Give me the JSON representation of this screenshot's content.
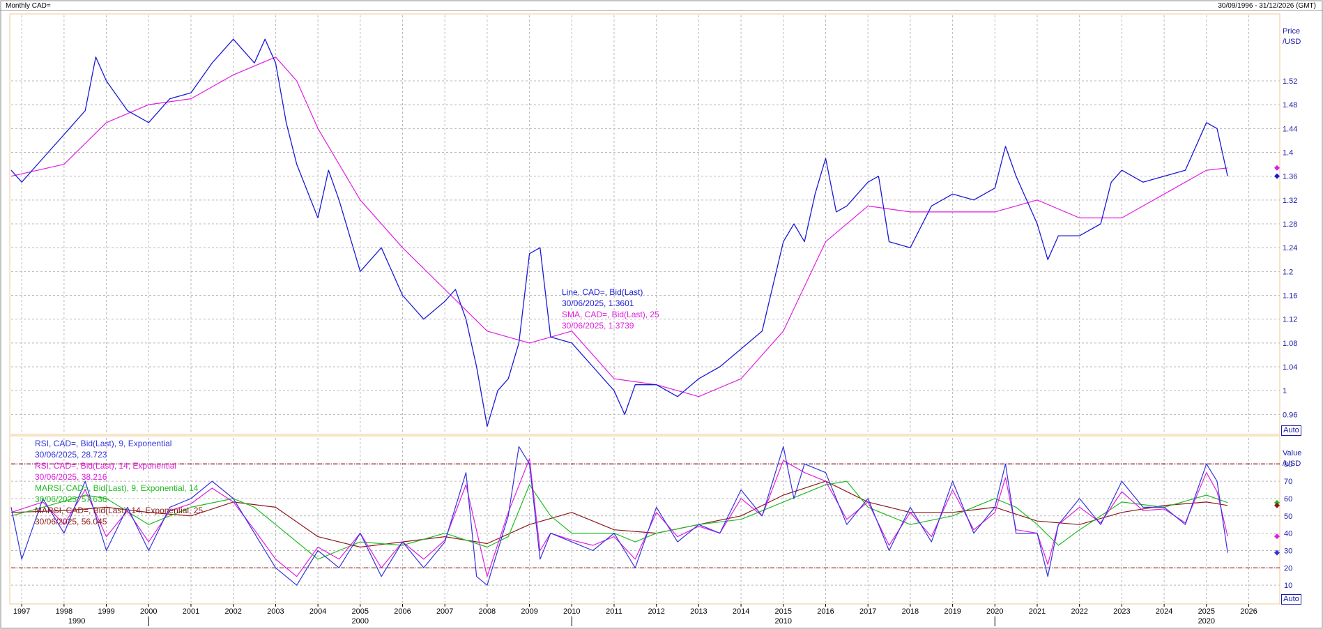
{
  "header": {
    "title": "Monthly CAD=",
    "range": "30/09/1996 - 31/12/2026 (GMT)"
  },
  "price_panel": {
    "unit_line1": "Price",
    "unit_line2": "/USD",
    "auto": "Auto",
    "legend": [
      {
        "label": "Line, CAD=, Bid(Last)",
        "value": "30/06/2025, 1.3601",
        "color": "#1a1ad6"
      },
      {
        "label": "SMA, CAD=, Bid(Last),  25",
        "value": "30/06/2025, 1.3739",
        "color": "#e01ee0"
      }
    ]
  },
  "rsi_panel": {
    "unit_line1": "Value",
    "unit_line2": "/USD",
    "auto": "Auto",
    "legend": [
      {
        "label": "RSI, CAD=, Bid(Last),  9, Exponential",
        "value": "30/06/2025, 28.723",
        "color": "#3333dd"
      },
      {
        "label": "RSI, CAD=, Bid(Last),  14, Exponential",
        "value": "30/06/2025, 38.216",
        "color": "#e01ee0"
      },
      {
        "label": "MARSI, CAD=, Bid(Last),  9, Exponential, 14",
        "value": "30/06/2025, 57.636",
        "color": "#22bb22"
      },
      {
        "label": "MARSI, CAD=, Bid(Last),  14, Exponential, 25",
        "value": "30/06/2025, 56.045",
        "color": "#8b1a1a"
      }
    ]
  },
  "x_axis": {
    "years": [
      "1997",
      "1998",
      "1999",
      "2000",
      "2001",
      "2002",
      "2003",
      "2004",
      "2005",
      "2006",
      "2007",
      "2008",
      "2009",
      "2010",
      "2011",
      "2012",
      "2013",
      "2014",
      "2015",
      "2016",
      "2017",
      "2018",
      "2019",
      "2020",
      "2021",
      "2022",
      "2023",
      "2024",
      "2025",
      "2026"
    ],
    "decades": [
      "1990",
      "2000",
      "2010",
      "2020"
    ]
  },
  "colors": {
    "price": "#1a1ad6",
    "sma": "#e01ee0",
    "rsi9": "#3333dd",
    "rsi14": "#e01ee0",
    "marsi9": "#22bb22",
    "marsi14": "#8b1a1a",
    "grid": "#b8b8b8",
    "bands": "#8b1a1a"
  },
  "chart_data": [
    {
      "type": "line",
      "title": "",
      "ylabel": "Price /USD",
      "ylim": [
        0.93,
        1.63
      ],
      "y_ticks": [
        0.96,
        1,
        1.04,
        1.08,
        1.12,
        1.16,
        1.2,
        1.24,
        1.28,
        1.32,
        1.36,
        1.4,
        1.44,
        1.48,
        1.52
      ],
      "grid": true,
      "series": [
        {
          "name": "Line, CAD=, Bid(Last)",
          "x": [
            1996.75,
            1997.0,
            1997.5,
            1998.0,
            1998.5,
            1998.75,
            1999.0,
            1999.5,
            2000.0,
            2000.5,
            2001.0,
            2001.5,
            2002.0,
            2002.5,
            2002.75,
            2003.0,
            2003.25,
            2003.5,
            2004.0,
            2004.25,
            2004.5,
            2005.0,
            2005.5,
            2006.0,
            2006.5,
            2007.0,
            2007.25,
            2007.5,
            2007.75,
            2008.0,
            2008.25,
            2008.5,
            2008.75,
            2009.0,
            2009.25,
            2009.5,
            2010.0,
            2010.5,
            2011.0,
            2011.25,
            2011.5,
            2012.0,
            2012.5,
            2013.0,
            2013.5,
            2014.0,
            2014.5,
            2015.0,
            2015.25,
            2015.5,
            2015.75,
            2016.0,
            2016.25,
            2016.5,
            2017.0,
            2017.25,
            2017.5,
            2018.0,
            2018.5,
            2019.0,
            2019.5,
            2020.0,
            2020.25,
            2020.5,
            2021.0,
            2021.25,
            2021.5,
            2022.0,
            2022.5,
            2022.75,
            2023.0,
            2023.5,
            2024.0,
            2024.5,
            2025.0,
            2025.25,
            2025.5
          ],
          "values": [
            1.37,
            1.35,
            1.39,
            1.43,
            1.47,
            1.56,
            1.52,
            1.47,
            1.45,
            1.49,
            1.5,
            1.55,
            1.59,
            1.55,
            1.59,
            1.55,
            1.45,
            1.38,
            1.29,
            1.37,
            1.32,
            1.2,
            1.24,
            1.16,
            1.12,
            1.15,
            1.17,
            1.12,
            1.04,
            0.94,
            1.0,
            1.02,
            1.08,
            1.23,
            1.24,
            1.09,
            1.08,
            1.04,
            1.0,
            0.96,
            1.01,
            1.01,
            0.99,
            1.02,
            1.04,
            1.07,
            1.1,
            1.25,
            1.28,
            1.25,
            1.33,
            1.39,
            1.3,
            1.31,
            1.35,
            1.36,
            1.25,
            1.24,
            1.31,
            1.33,
            1.32,
            1.34,
            1.41,
            1.36,
            1.28,
            1.22,
            1.26,
            1.26,
            1.28,
            1.35,
            1.37,
            1.35,
            1.36,
            1.37,
            1.45,
            1.44,
            1.3601
          ]
        },
        {
          "name": "SMA, CAD=, Bid(Last),  25",
          "x": [
            1996.75,
            1998.0,
            1999.0,
            2000.0,
            2001.0,
            2002.0,
            2003.0,
            2003.5,
            2004.0,
            2005.0,
            2006.0,
            2007.0,
            2008.0,
            2009.0,
            2010.0,
            2011.0,
            2012.0,
            2013.0,
            2014.0,
            2015.0,
            2016.0,
            2017.0,
            2018.0,
            2019.0,
            2020.0,
            2021.0,
            2022.0,
            2023.0,
            2024.0,
            2025.0,
            2025.5
          ],
          "values": [
            1.36,
            1.38,
            1.45,
            1.48,
            1.49,
            1.53,
            1.56,
            1.52,
            1.44,
            1.32,
            1.24,
            1.17,
            1.1,
            1.08,
            1.1,
            1.02,
            1.01,
            0.99,
            1.02,
            1.1,
            1.25,
            1.31,
            1.3,
            1.3,
            1.3,
            1.32,
            1.29,
            1.29,
            1.33,
            1.37,
            1.3739
          ]
        }
      ]
    },
    {
      "type": "line",
      "title": "",
      "ylabel": "Value /USD",
      "ylim": [
        0,
        95
      ],
      "y_ticks": [
        10,
        20,
        30,
        40,
        50,
        60,
        70,
        80
      ],
      "bands": [
        20,
        80
      ],
      "grid": true,
      "series": [
        {
          "name": "RSI, CAD=, Bid(Last),  9, Exponential",
          "x": [
            1996.75,
            1997.0,
            1997.5,
            1998.0,
            1998.5,
            1999.0,
            1999.5,
            2000.0,
            2000.5,
            2001.0,
            2001.5,
            2002.0,
            2002.5,
            2003.0,
            2003.5,
            2004.0,
            2004.5,
            2005.0,
            2005.5,
            2006.0,
            2006.5,
            2007.0,
            2007.5,
            2007.75,
            2008.0,
            2008.5,
            2008.75,
            2009.0,
            2009.25,
            2009.5,
            2010.0,
            2010.5,
            2011.0,
            2011.5,
            2012.0,
            2012.5,
            2013.0,
            2013.5,
            2014.0,
            2014.5,
            2015.0,
            2015.25,
            2015.5,
            2016.0,
            2016.5,
            2017.0,
            2017.5,
            2018.0,
            2018.5,
            2019.0,
            2019.5,
            2020.0,
            2020.25,
            2020.5,
            2021.0,
            2021.25,
            2021.5,
            2022.0,
            2022.5,
            2023.0,
            2023.5,
            2024.0,
            2024.5,
            2025.0,
            2025.25,
            2025.5
          ],
          "values": [
            55,
            25,
            60,
            40,
            70,
            30,
            55,
            30,
            55,
            60,
            70,
            60,
            40,
            20,
            10,
            30,
            20,
            40,
            15,
            35,
            20,
            35,
            75,
            15,
            10,
            50,
            90,
            80,
            25,
            40,
            35,
            30,
            40,
            20,
            55,
            35,
            45,
            40,
            65,
            50,
            90,
            60,
            80,
            75,
            45,
            60,
            30,
            55,
            35,
            70,
            40,
            55,
            80,
            40,
            40,
            15,
            45,
            60,
            45,
            70,
            55,
            55,
            45,
            80,
            70,
            28.723
          ]
        },
        {
          "name": "RSI, CAD=, Bid(Last),  14, Exponential",
          "x": [
            1996.75,
            1997.5,
            1998.0,
            1998.5,
            1999.0,
            1999.5,
            2000.0,
            2000.5,
            2001.0,
            2001.5,
            2002.0,
            2002.5,
            2003.0,
            2003.5,
            2004.0,
            2004.5,
            2005.0,
            2005.5,
            2006.0,
            2006.5,
            2007.0,
            2007.5,
            2008.0,
            2008.5,
            2009.0,
            2009.25,
            2009.5,
            2010.0,
            2010.5,
            2011.0,
            2011.5,
            2012.0,
            2012.5,
            2013.0,
            2013.5,
            2014.0,
            2014.5,
            2015.0,
            2015.5,
            2016.0,
            2016.5,
            2017.0,
            2017.5,
            2018.0,
            2018.5,
            2019.0,
            2019.5,
            2020.0,
            2020.25,
            2020.5,
            2021.0,
            2021.25,
            2021.5,
            2022.0,
            2022.5,
            2023.0,
            2023.5,
            2024.0,
            2024.5,
            2025.0,
            2025.25,
            2025.5
          ],
          "values": [
            52,
            58,
            45,
            65,
            38,
            53,
            35,
            53,
            57,
            66,
            58,
            42,
            25,
            15,
            32,
            25,
            40,
            20,
            35,
            25,
            36,
            68,
            15,
            52,
            83,
            30,
            40,
            36,
            33,
            38,
            25,
            52,
            38,
            44,
            40,
            60,
            50,
            82,
            75,
            70,
            48,
            58,
            33,
            52,
            38,
            65,
            42,
            52,
            72,
            42,
            40,
            22,
            45,
            55,
            46,
            64,
            53,
            54,
            46,
            75,
            64,
            38.216
          ]
        },
        {
          "name": "MARSI, CAD=, Bid(Last),  9, Exponential, 14",
          "x": [
            1996.75,
            1997.5,
            1998.5,
            1999.0,
            2000.0,
            2001.0,
            2002.0,
            2002.5,
            2003.0,
            2004.0,
            2004.5,
            2005.0,
            2006.0,
            2007.0,
            2008.0,
            2008.5,
            2009.0,
            2009.5,
            2010.0,
            2011.0,
            2011.5,
            2012.0,
            2013.0,
            2014.0,
            2015.0,
            2016.0,
            2016.5,
            2017.0,
            2018.0,
            2019.0,
            2020.0,
            2020.5,
            2021.0,
            2021.5,
            2022.0,
            2023.0,
            2024.0,
            2025.0,
            2025.5
          ],
          "values": [
            50,
            55,
            62,
            60,
            45,
            55,
            60,
            55,
            45,
            25,
            30,
            35,
            33,
            40,
            32,
            38,
            68,
            50,
            40,
            40,
            35,
            40,
            45,
            48,
            58,
            68,
            70,
            55,
            45,
            50,
            60,
            55,
            45,
            33,
            42,
            58,
            55,
            62,
            57.636
          ]
        },
        {
          "name": "MARSI, CAD=, Bid(Last),  14, Exponential, 25",
          "x": [
            1996.75,
            1998.0,
            1999.0,
            2000.0,
            2001.0,
            2002.0,
            2003.0,
            2004.0,
            2005.0,
            2006.0,
            2007.0,
            2008.0,
            2009.0,
            2010.0,
            2011.0,
            2012.0,
            2013.0,
            2014.0,
            2015.0,
            2016.0,
            2017.0,
            2018.0,
            2019.0,
            2020.0,
            2021.0,
            2022.0,
            2023.0,
            2024.0,
            2025.0,
            2025.5
          ],
          "values": [
            52,
            53,
            55,
            52,
            50,
            58,
            55,
            38,
            32,
            35,
            38,
            34,
            45,
            52,
            42,
            40,
            45,
            50,
            62,
            70,
            58,
            52,
            52,
            55,
            47,
            45,
            52,
            56,
            58,
            56.045
          ]
        }
      ]
    }
  ]
}
